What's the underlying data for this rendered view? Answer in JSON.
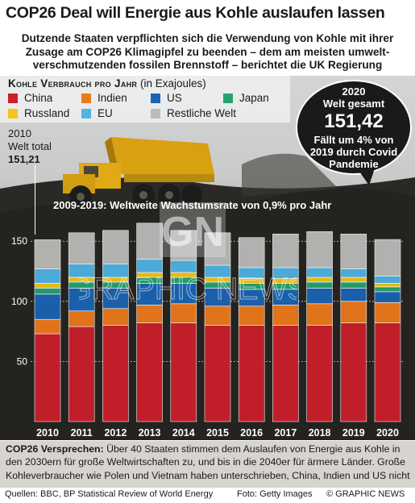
{
  "title": "COP26 Deal will Energie aus Kohle auslaufen lassen",
  "subtitle": [
    "Dutzende Staaten verpflichten sich die Verwendung von Kohle mit ihrer",
    "Zusage am COP26 Klimagipfel zu beenden – dem am meisten umwelt-",
    "verschmutzenden  fossilen Brennstoff – berichtet die UK Regierung"
  ],
  "legend": {
    "title": "Kohle Verbrauch pro Jahr",
    "unit": " (in Exajoules)",
    "items": [
      {
        "label": "China",
        "color": "#cc1f2b"
      },
      {
        "label": "Indien",
        "color": "#f07a1a"
      },
      {
        "label": "US",
        "color": "#1a64b4"
      },
      {
        "label": "Japan",
        "color": "#25a36f"
      },
      {
        "label": "Russland",
        "color": "#f5c518"
      },
      {
        "label": "EU",
        "color": "#4fb5e6"
      },
      {
        "label": "Restliche Welt",
        "color": "#bcbcbc"
      }
    ]
  },
  "callout": {
    "line1": "2020",
    "line2": "Welt gesamt",
    "value": "151,42",
    "line3": "Fällt um 4% von",
    "line4": "2019 durch Covid",
    "line5": "Pandemie"
  },
  "annotation_2010": {
    "line1": "2010",
    "line2": "Welt total",
    "value": "151,21"
  },
  "growth_note": "2009-2019: Weltweite Wachstumsrate von 0,9% pro Jahr",
  "watermark": {
    "logo": "GN",
    "text": "GRAPHIC NEWS"
  },
  "bottom_note": {
    "title": "COP26 Versprechen:",
    "text": " Über 40 Staaten stimmen dem Auslaufen von Energie aus Kohle in den 2030ern für große Weltwirtschaften zu, und bis in die 2040er für ärmere Länder. Große Kohleverbraucher wie Polen und Vietnam haben unterschrieben, China, Indien und US nicht"
  },
  "footer": {
    "sources": "Quellen: BBC, BP Statistical Review of World Energy",
    "photo": "Foto: Getty Images",
    "copyright": "© GRAPHIC NEWS"
  },
  "chart_data": {
    "type": "bar",
    "stacked": true,
    "categories": [
      "2010",
      "2011",
      "2012",
      "2013",
      "2014",
      "2015",
      "2016",
      "2017",
      "2018",
      "2019",
      "2020"
    ],
    "ylim": [
      0,
      160
    ],
    "yticks": [
      0,
      50,
      100,
      150
    ],
    "series": [
      {
        "name": "China",
        "color": "#cc1f2b",
        "values": [
          73,
          79,
          80,
          82,
          82,
          80,
          80,
          80,
          80,
          82,
          82
        ]
      },
      {
        "name": "Indien",
        "color": "#f07a1a",
        "values": [
          12,
          13,
          14,
          15,
          16,
          16,
          16,
          17,
          18,
          18,
          17
        ]
      },
      {
        "name": "US",
        "color": "#1a64b4",
        "values": [
          21,
          19,
          17,
          18,
          17,
          15,
          14,
          13,
          13,
          11,
          9
        ]
      },
      {
        "name": "Japan",
        "color": "#25a36f",
        "values": [
          5,
          5,
          5,
          5,
          5,
          5,
          5,
          5,
          5,
          5,
          4
        ]
      },
      {
        "name": "Russland",
        "color": "#f5c518",
        "values": [
          4,
          4,
          4,
          4,
          4,
          4,
          4,
          4,
          4,
          4,
          3
        ]
      },
      {
        "name": "EU",
        "color": "#4fb5e6",
        "values": [
          12,
          11,
          11,
          11,
          10,
          10,
          9,
          9,
          8,
          7,
          6
        ]
      },
      {
        "name": "Restliche Welt",
        "color": "#bcbcbc",
        "values": [
          24.21,
          26,
          28,
          30,
          25,
          27,
          25,
          28,
          30,
          29,
          30.42
        ]
      }
    ]
  }
}
